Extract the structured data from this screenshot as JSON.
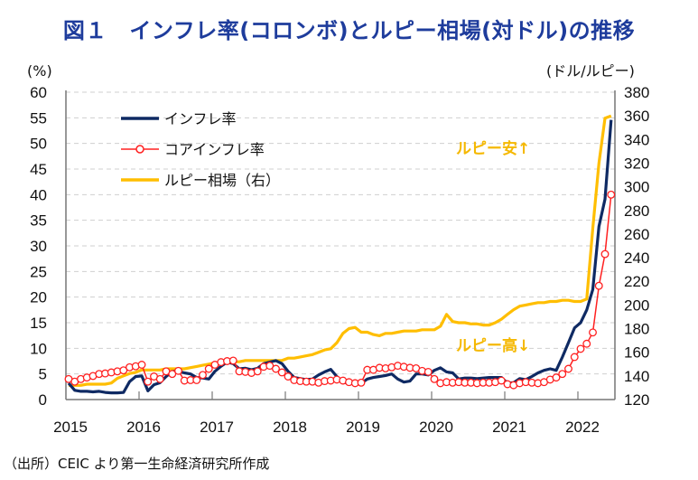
{
  "title": "図１　インフレ率(コロンボ)とルピー相場(対ドル)の推移",
  "source": "（出所）CEIC より第一生命経済研究所作成",
  "colors": {
    "headline": "#0f2a63",
    "core": "#ff2020",
    "rupee": "#ffbe00",
    "annotation": "#f5b800",
    "title": "#1e3c9c"
  },
  "chart_data": {
    "type": "line",
    "title": "図１　インフレ率(コロンボ)とルピー相場(対ドル)の推移",
    "ylabel_left": "(%)",
    "ylabel_right": "(ドル/ルピー)",
    "ylim_left": [
      0,
      60
    ],
    "ylim_right": [
      120,
      380
    ],
    "yticks_left": [
      "0",
      "5",
      "10",
      "15",
      "20",
      "25",
      "30",
      "35",
      "40",
      "45",
      "50",
      "55",
      "60"
    ],
    "yticks_right": [
      "120",
      "140",
      "160",
      "180",
      "200",
      "220",
      "240",
      "260",
      "280",
      "300",
      "320",
      "340",
      "360",
      "380"
    ],
    "xticks": [
      "2015",
      "2016",
      "2017",
      "2018",
      "2019",
      "2020",
      "2021",
      "2022"
    ],
    "x_start": "2015-01",
    "x_frequency": "monthly",
    "grid": true,
    "legend_placement": "top-left",
    "annotations": [
      "ルピー安↑",
      "ルピー高↓"
    ],
    "series": [
      {
        "name": "インフレ率",
        "axis": "left",
        "values": [
          3.2,
          1.8,
          1.6,
          1.6,
          1.5,
          1.6,
          1.4,
          1.3,
          1.3,
          1.4,
          3.5,
          4.5,
          4.6,
          1.7,
          2.9,
          3.3,
          4.5,
          5.5,
          5.5,
          5.2,
          5.0,
          4.3,
          4.2,
          4.0,
          5.5,
          6.5,
          7.3,
          7.0,
          6.0,
          6.1,
          5.8,
          6.1,
          7.0,
          7.3,
          7.6,
          7.0,
          5.5,
          4.3,
          4.1,
          3.9,
          4.0,
          4.8,
          5.4,
          5.9,
          4.5,
          3.3,
          3.3,
          2.9,
          3.2,
          4.0,
          4.3,
          4.5,
          4.7,
          5.0,
          4.0,
          3.4,
          3.6,
          5.0,
          5.0,
          4.8,
          5.7,
          6.2,
          5.4,
          5.2,
          4.0,
          4.2,
          4.2,
          4.1,
          4.2,
          4.3,
          4.3,
          4.3,
          3.2,
          3.3,
          4.1,
          3.9,
          4.5,
          5.2,
          5.7,
          6.0,
          5.7,
          8.3,
          11.1,
          14.0,
          15.0,
          17.5,
          21.5,
          33.8,
          39.1,
          54.6
        ]
      },
      {
        "name": "コアインフレ率",
        "axis": "left",
        "values": [
          4.0,
          3.5,
          4.0,
          4.3,
          4.6,
          5.0,
          5.1,
          5.3,
          5.5,
          5.7,
          6.3,
          6.5,
          6.8,
          3.5,
          4.5,
          4.0,
          5.5,
          5.0,
          5.6,
          3.7,
          3.8,
          3.8,
          4.8,
          6.0,
          6.8,
          7.3,
          7.5,
          7.6,
          5.5,
          5.4,
          5.2,
          5.5,
          6.4,
          6.6,
          6.0,
          5.3,
          4.5,
          3.8,
          3.6,
          3.5,
          3.5,
          3.3,
          3.6,
          3.7,
          3.9,
          3.7,
          3.4,
          3.2,
          3.3,
          5.8,
          5.8,
          6.2,
          6.1,
          6.3,
          6.6,
          6.4,
          6.2,
          6.1,
          5.6,
          5.4,
          4.0,
          3.2,
          3.4,
          3.3,
          3.4,
          3.3,
          3.3,
          3.2,
          3.3,
          3.3,
          3.4,
          3.7,
          3.0,
          2.8,
          3.2,
          3.4,
          3.3,
          3.2,
          3.4,
          3.9,
          4.3,
          5.0,
          6.0,
          8.3,
          9.9,
          10.9,
          13.1,
          22.2,
          28.4,
          40.0
        ]
      },
      {
        "name": "ルピー相場（右）",
        "axis": "right",
        "values": [
          132,
          132,
          132,
          133,
          133,
          133,
          133,
          134,
          138,
          140,
          142,
          143,
          145,
          145,
          145,
          145,
          146,
          146,
          146,
          146,
          147,
          148,
          149,
          150,
          151,
          151,
          152,
          152,
          152,
          153,
          153,
          153,
          153,
          153,
          153,
          153,
          155,
          155,
          156,
          157,
          158,
          160,
          162,
          163,
          168,
          176,
          180,
          181,
          177,
          177,
          175,
          174,
          176,
          176,
          177,
          178,
          178,
          178,
          179,
          179,
          179,
          182,
          192,
          186,
          185,
          185,
          184,
          184,
          183,
          183,
          185,
          188,
          192,
          196,
          199,
          200,
          201,
          202,
          202,
          203,
          203,
          204,
          204,
          203,
          203,
          205,
          265,
          320,
          358,
          360
        ]
      }
    ]
  }
}
